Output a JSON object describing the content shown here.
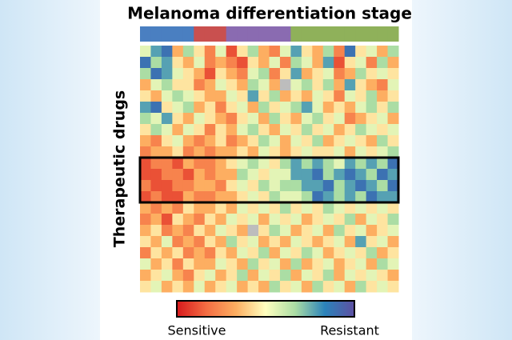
{
  "chart_data": {
    "type": "heatmap",
    "title": "Melanoma differentiation stage",
    "y_label": "Therapeutic drugs",
    "colorbar_low_label": "Sensitive",
    "colorbar_high_label": "Resistant",
    "colorscale": [
      "#d7191c",
      "#f46d43",
      "#fdae61",
      "#ffffbf",
      "#abdda4",
      "#2b83ba",
      "#5e4fa2"
    ],
    "zlim": [
      0,
      9
    ],
    "null_color": "#bdbdbd",
    "stage_colors": [
      "#4a7fc1",
      "#c9504f",
      "#8a6bb1",
      "#8fb15a"
    ],
    "column_stage": [
      0,
      0,
      0,
      0,
      0,
      1,
      1,
      1,
      2,
      2,
      2,
      2,
      2,
      2,
      3,
      3,
      3,
      3,
      3,
      3,
      3,
      3,
      3,
      3
    ],
    "values": [
      [
        5,
        7,
        8,
        3,
        6,
        4,
        2,
        5,
        1,
        4,
        6,
        3,
        2,
        5,
        7,
        4,
        3,
        6,
        2,
        8,
        4,
        5,
        3,
        6
      ],
      [
        8,
        6,
        7,
        4,
        3,
        5,
        2,
        3,
        2,
        1,
        4,
        3,
        5,
        2,
        6,
        5,
        3,
        7,
        1,
        4,
        5,
        2,
        6,
        3
      ],
      [
        6,
        8,
        7,
        5,
        4,
        3,
        1,
        4,
        3,
        2,
        5,
        6,
        2,
        4,
        7,
        3,
        4,
        5,
        2,
        3,
        6,
        4,
        5,
        4
      ],
      [
        3,
        5,
        6,
        4,
        4,
        2,
        3,
        5,
        4,
        3,
        6,
        5,
        3,
        null,
        5,
        6,
        4,
        6,
        3,
        7,
        4,
        3,
        2,
        5
      ],
      [
        4,
        3,
        5,
        6,
        5,
        4,
        3,
        3,
        5,
        4,
        7,
        4,
        6,
        3,
        4,
        3,
        5,
        4,
        2,
        5,
        4,
        6,
        3,
        4
      ],
      [
        7,
        8,
        4,
        5,
        6,
        3,
        4,
        2,
        4,
        5,
        3,
        6,
        4,
        5,
        6,
        7,
        5,
        3,
        4,
        3,
        5,
        6,
        4,
        6
      ],
      [
        6,
        5,
        7,
        4,
        3,
        5,
        4,
        3,
        2,
        4,
        5,
        3,
        6,
        4,
        3,
        5,
        6,
        4,
        5,
        2,
        3,
        4,
        5,
        3
      ],
      [
        4,
        6,
        5,
        3,
        5,
        4,
        2,
        4,
        3,
        5,
        6,
        4,
        3,
        5,
        4,
        6,
        4,
        5,
        3,
        4,
        6,
        5,
        4,
        5
      ],
      [
        3,
        2,
        4,
        5,
        3,
        2,
        3,
        4,
        2,
        3,
        4,
        6,
        5,
        3,
        5,
        4,
        6,
        3,
        4,
        5,
        4,
        3,
        6,
        4
      ],
      [
        2,
        3,
        3,
        4,
        2,
        3,
        2,
        3,
        3,
        4,
        3,
        5,
        4,
        3,
        4,
        5,
        4,
        4,
        5,
        3,
        5,
        4,
        5,
        6
      ],
      [
        1,
        2,
        2,
        1,
        3,
        2,
        2,
        3,
        4,
        5,
        6,
        5,
        4,
        6,
        7,
        6,
        7,
        6,
        5,
        7,
        6,
        7,
        6,
        8
      ],
      [
        1,
        1,
        2,
        2,
        1,
        3,
        2,
        3,
        3,
        6,
        5,
        4,
        5,
        5,
        7,
        7,
        8,
        6,
        7,
        8,
        7,
        6,
        8,
        7
      ],
      [
        2,
        1,
        1,
        2,
        2,
        3,
        3,
        2,
        4,
        5,
        4,
        6,
        5,
        6,
        6,
        7,
        7,
        8,
        6,
        7,
        8,
        7,
        6,
        8
      ],
      [
        1,
        2,
        1,
        1,
        3,
        2,
        2,
        3,
        3,
        4,
        5,
        4,
        6,
        5,
        5,
        6,
        8,
        7,
        6,
        7,
        6,
        8,
        7,
        7
      ],
      [
        3,
        2,
        3,
        2,
        4,
        3,
        3,
        4,
        3,
        5,
        4,
        5,
        4,
        6,
        4,
        5,
        4,
        6,
        5,
        4,
        5,
        4,
        5,
        4
      ],
      [
        2,
        3,
        1,
        4,
        3,
        2,
        4,
        3,
        5,
        4,
        5,
        3,
        5,
        4,
        5,
        3,
        4,
        5,
        4,
        6,
        3,
        5,
        4,
        6
      ],
      [
        3,
        4,
        2,
        3,
        2,
        4,
        3,
        5,
        4,
        3,
        null,
        4,
        6,
        5,
        3,
        4,
        5,
        3,
        6,
        4,
        5,
        3,
        4,
        5
      ],
      [
        4,
        3,
        5,
        2,
        3,
        2,
        4,
        3,
        6,
        4,
        5,
        3,
        4,
        3,
        5,
        4,
        3,
        4,
        5,
        3,
        7,
        4,
        5,
        3
      ],
      [
        2,
        4,
        3,
        4,
        2,
        3,
        2,
        4,
        3,
        5,
        4,
        6,
        3,
        5,
        4,
        6,
        5,
        3,
        4,
        5,
        4,
        6,
        3,
        4
      ],
      [
        5,
        3,
        4,
        2,
        4,
        3,
        3,
        5,
        4,
        3,
        6,
        4,
        5,
        3,
        6,
        3,
        4,
        5,
        3,
        4,
        5,
        3,
        6,
        5
      ],
      [
        3,
        4,
        5,
        3,
        2,
        4,
        5,
        3,
        4,
        6,
        3,
        5,
        4,
        6,
        3,
        5,
        4,
        6,
        3,
        5,
        4,
        5,
        4,
        3
      ],
      [
        4,
        5,
        3,
        4,
        3,
        5,
        3,
        4,
        5,
        3,
        4,
        3,
        6,
        4,
        5,
        3,
        6,
        4,
        5,
        3,
        6,
        4,
        5,
        4
      ]
    ]
  }
}
